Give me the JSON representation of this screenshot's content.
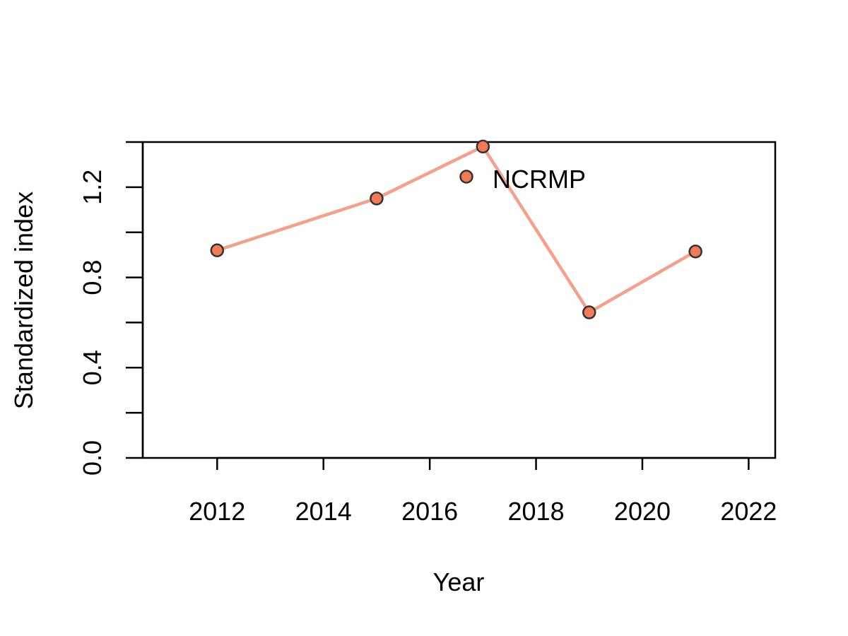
{
  "chart_data": {
    "type": "line",
    "title": "",
    "xlabel": "Year",
    "ylabel": "Standardized index",
    "xlim": [
      2010.6,
      2022.5
    ],
    "ylim": [
      0,
      1.4
    ],
    "x_ticks": [
      2012,
      2014,
      2016,
      2018,
      2020,
      2022
    ],
    "y_ticks": [
      0,
      0.2,
      0.4,
      0.6,
      0.8,
      1.0,
      1.2,
      1.4
    ],
    "y_tick_labels": [
      {
        "value": 0.0,
        "label": "0.0"
      },
      {
        "value": 0.4,
        "label": "0.4"
      },
      {
        "value": 0.8,
        "label": "0.8"
      },
      {
        "value": 1.2,
        "label": "1.2"
      }
    ],
    "grid": false,
    "series": [
      {
        "x": [
          2012,
          2015,
          2017,
          2019,
          2021
        ],
        "y": [
          0.92,
          1.15,
          1.38,
          0.645,
          0.915
        ],
        "line_color": "#F4A08A",
        "marker_fill": "#F47A55",
        "marker_edge": "#333333"
      }
    ],
    "legend": {
      "label": "NCRMP",
      "marker_fill": "#F47A55",
      "marker_edge": "#333333"
    }
  }
}
